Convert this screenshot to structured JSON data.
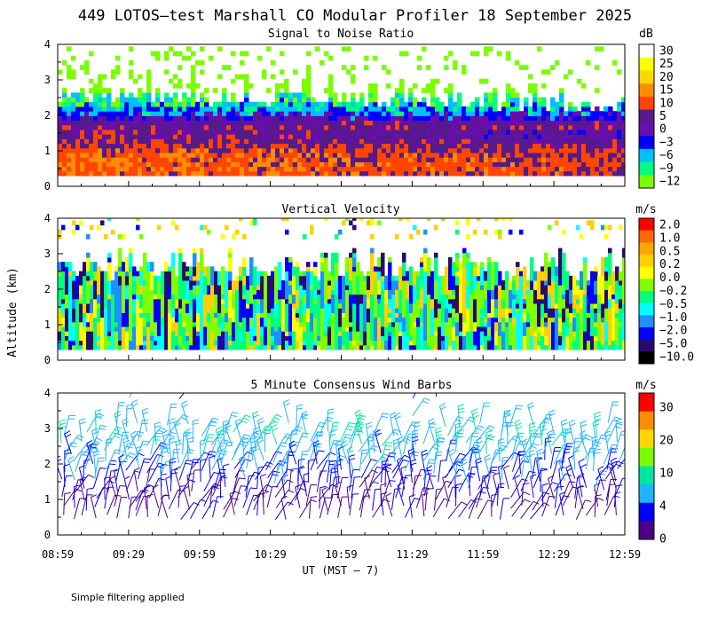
{
  "title": "449 LOTOS–test Marshall CO Modular Profiler 18 September 2025",
  "ylabel": "Altitude (km)",
  "xlabel": "UT  (MST – 7)",
  "footnote": "Simple filtering applied",
  "x_ticks": [
    "08:59",
    "09:29",
    "09:59",
    "10:29",
    "10:59",
    "11:29",
    "11:59",
    "12:29",
    "12:59"
  ],
  "y_ticks": [
    "0",
    "1",
    "2",
    "3",
    "4"
  ],
  "chart_data": [
    {
      "type": "heatmap",
      "title": "Signal to Noise Ratio",
      "unit": "dB",
      "xrange": [
        "08:59",
        "12:59"
      ],
      "ylim": [
        0,
        4
      ],
      "colorbar": {
        "labels": [
          "30",
          "25",
          "20",
          "15",
          "10",
          "5",
          "0",
          "−3",
          "−6",
          "−9",
          "−12"
        ],
        "colors": [
          "#ffffff",
          "#ffff00",
          "#ffd700",
          "#ff8c00",
          "#ff4500",
          "#551a8b",
          "#6a0dad",
          "#0000ff",
          "#00bfff",
          "#00ff7f",
          "#7cfc00"
        ]
      },
      "profile": [
        {
          "alt_km": 0.3,
          "snr_db": 12
        },
        {
          "alt_km": 0.8,
          "snr_db": 12
        },
        {
          "alt_km": 1.3,
          "snr_db": 6
        },
        {
          "alt_km": 1.7,
          "snr_db": 4
        },
        {
          "alt_km": 2.0,
          "snr_db": -4
        },
        {
          "alt_km": 2.3,
          "snr_db": -8
        },
        {
          "alt_km": 2.6,
          "snr_db": -11
        },
        {
          "alt_km": 3.2,
          "snr_db": -12
        },
        {
          "alt_km": 3.8,
          "snr_db": -12
        }
      ]
    },
    {
      "type": "heatmap",
      "title": "Vertical Velocity",
      "unit": "m/s",
      "xrange": [
        "08:59",
        "12:59"
      ],
      "ylim": [
        0,
        4
      ],
      "colorbar": {
        "labels": [
          "2.0",
          "1.0",
          "0.5",
          "0.2",
          "0.0",
          "−0.2",
          "−0.5",
          "−1.0",
          "−2.0",
          "−5.0",
          "−10.0"
        ],
        "colors": [
          "#ff0000",
          "#ff6a00",
          "#ffa500",
          "#ffd000",
          "#ffff00",
          "#7fff00",
          "#00ff7f",
          "#00ffff",
          "#1e90ff",
          "#0000ff",
          "#2a0a6e",
          "#000000"
        ]
      },
      "typical_range_ms": [
        -2.0,
        0.5
      ]
    },
    {
      "type": "scatter",
      "title": "5 Minute Consensus Wind Barbs",
      "unit": "m/s",
      "xrange": [
        "08:59",
        "12:59"
      ],
      "ylim": [
        0,
        4
      ],
      "colorbar": {
        "labels": [
          "30",
          "20",
          "10",
          "4",
          "0"
        ],
        "colors": [
          "#ff0000",
          "#ff8c00",
          "#ffd700",
          "#7cfc00",
          "#00e5a0",
          "#1eb4ff",
          "#0000ff",
          "#4b0082"
        ]
      },
      "speed_by_altitude": [
        {
          "alt_km": 0.5,
          "speed_ms": 3
        },
        {
          "alt_km": 1.0,
          "speed_ms": 4
        },
        {
          "alt_km": 1.5,
          "speed_ms": 6
        },
        {
          "alt_km": 2.0,
          "speed_ms": 8
        },
        {
          "alt_km": 2.5,
          "speed_ms": 9
        },
        {
          "alt_km": 3.0,
          "speed_ms": 9
        },
        {
          "alt_km": 3.8,
          "speed_ms": 7
        }
      ]
    }
  ]
}
